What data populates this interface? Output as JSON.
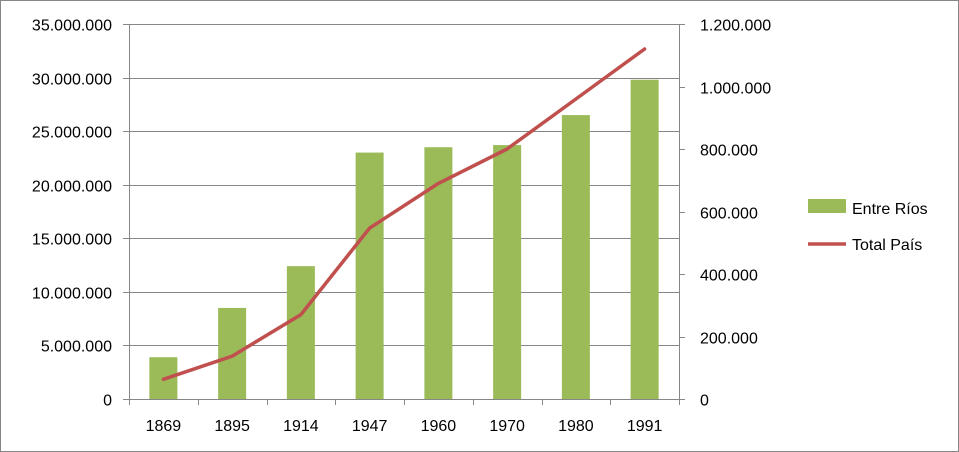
{
  "chart_data": {
    "type": "bar",
    "categories": [
      "1869",
      "1895",
      "1914",
      "1947",
      "1960",
      "1970",
      "1980",
      "1991"
    ],
    "series": [
      {
        "name": "Entre Ríos",
        "type": "bar",
        "axis": "left",
        "color": "#9BBB59",
        "values": [
          3900000,
          8500000,
          12400000,
          23000000,
          23500000,
          23700000,
          26500000,
          29800000
        ]
      },
      {
        "name": "Total País",
        "type": "line",
        "axis": "right",
        "color": "#C0504D",
        "values": [
          63000,
          137000,
          270000,
          547000,
          690000,
          800000,
          960000,
          1120000
        ]
      }
    ],
    "y_left": {
      "lim": [
        0,
        35000000
      ],
      "ticks": [
        0,
        5000000,
        10000000,
        15000000,
        20000000,
        25000000,
        30000000,
        35000000
      ],
      "tick_labels": [
        "0",
        "5.000.000",
        "10.000.000",
        "15.000.000",
        "20.000.000",
        "25.000.000",
        "30.000.000",
        "35.000.000"
      ]
    },
    "y_right": {
      "lim": [
        0,
        1200000
      ],
      "ticks": [
        0,
        200000,
        400000,
        600000,
        800000,
        1000000,
        1200000
      ],
      "tick_labels": [
        "0",
        "200.000",
        "400.000",
        "600.000",
        "800.000",
        "1.000.000",
        "1.200.000"
      ]
    },
    "title": "",
    "xlabel": "",
    "ylabel": "",
    "grid": "horizontal",
    "legend_position": "right"
  }
}
